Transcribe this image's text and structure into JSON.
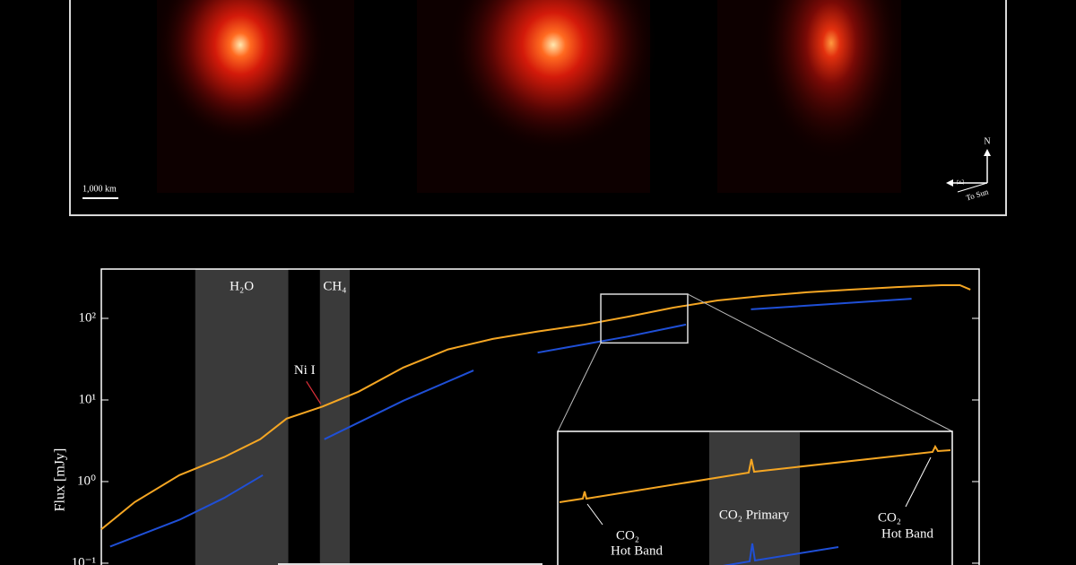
{
  "top_panel": {
    "scale_label": "1,000 km",
    "compass": {
      "north": "N",
      "east": "E",
      "sun": "To Sun"
    }
  },
  "chart_data": {
    "type": "line",
    "y_label": "Flux [mJy]",
    "log_y": true,
    "xlim": [
      0,
      100
    ],
    "ylim": [
      0.095,
      402
    ],
    "yticks": [
      {
        "value": 100,
        "label": "10²"
      },
      {
        "value": 10,
        "label": "10¹"
      },
      {
        "value": 1,
        "label": "10⁰"
      },
      {
        "value": 0.1,
        "label": "10⁻¹"
      }
    ],
    "series": [
      {
        "color": "#f5a623",
        "x": [
          0,
          3.8,
          8.9,
          14.0,
          18.1,
          21.1,
          25.2,
          29.3,
          34.4,
          39.5,
          44.6,
          49.7,
          54.9,
          60.0,
          65.1,
          70.2,
          75.3,
          80.4,
          85.5,
          90.6,
          95.7,
          97.8,
          99.0
        ],
        "values": [
          0.26,
          0.56,
          1.2,
          2.0,
          3.3,
          5.9,
          8.3,
          12.6,
          25,
          41.6,
          56,
          69,
          83,
          105,
          135,
          166,
          188,
          209,
          225,
          242,
          255,
          255,
          225
        ]
      },
      {
        "color": "#1f4fd6",
        "x": [
          1.0,
          8.9,
          14.0,
          18.4,
          null,
          25.4,
          34.4,
          42.4,
          null,
          49.7,
          60.0,
          66.6,
          null,
          74.0,
          92.3
        ],
        "values": [
          0.16,
          0.34,
          0.63,
          1.2,
          null,
          3.3,
          9.8,
          23,
          null,
          38,
          60,
          84,
          null,
          129,
          174
        ]
      }
    ],
    "bands": [
      {
        "label": "H₂O",
        "x": [
          10.7,
          21.3
        ]
      },
      {
        "label": "CH₄",
        "x": [
          24.9,
          28.3
        ]
      }
    ],
    "annotation": {
      "label": "Ni I",
      "x": 25.2,
      "y": 8.3,
      "color": "#e0303a"
    },
    "zoom": {
      "xlim": [
        56.9,
        66.8
      ],
      "ylim": [
        50,
        198
      ]
    },
    "inset": {
      "band_label": "CO₂ Primary",
      "left_label": [
        "CO₂",
        "Hot Band"
      ],
      "right_label": [
        "CO₂",
        "Hot Band"
      ]
    }
  }
}
